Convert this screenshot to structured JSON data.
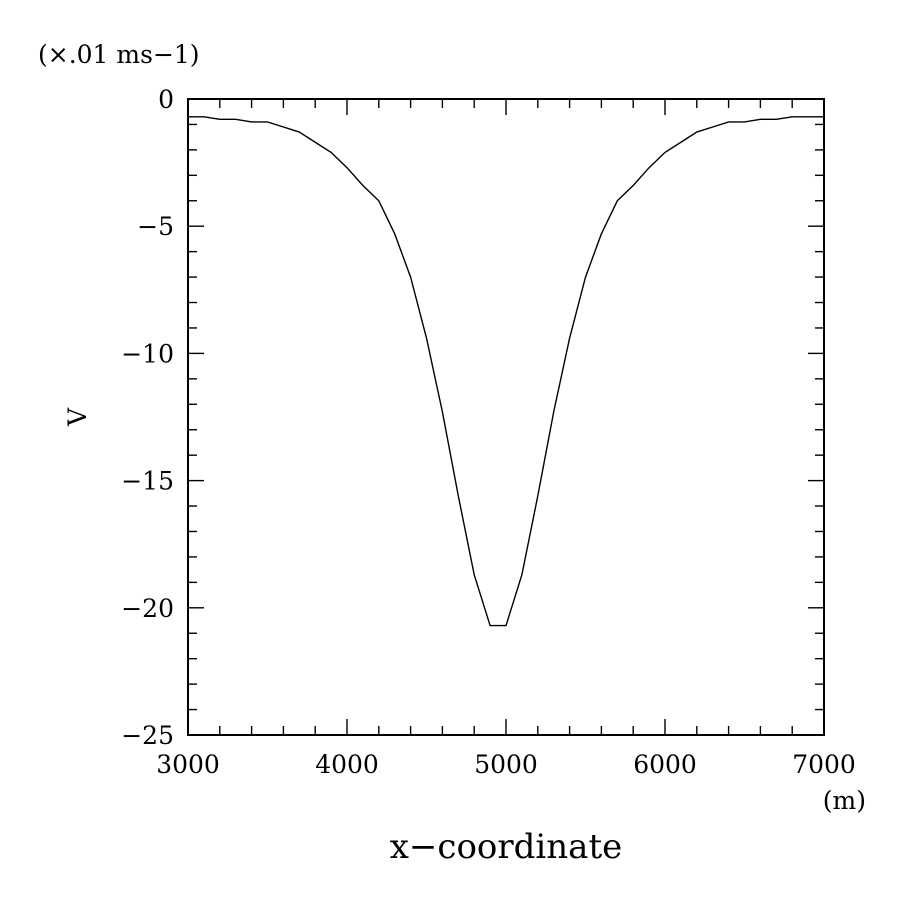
{
  "chart_data": {
    "type": "line",
    "title": "",
    "xlabel": "x−coordinate",
    "ylabel": "V",
    "x_unit": "(m)",
    "y_unit": "(×.01 ms−1)",
    "xlim": [
      3000,
      7000
    ],
    "ylim": [
      -25,
      0
    ],
    "x_ticks": [
      3000,
      4000,
      5000,
      6000,
      7000
    ],
    "x_tick_labels": [
      "3000",
      "4000",
      "5000",
      "6000",
      "7000"
    ],
    "y_ticks": [
      0,
      -5,
      -10,
      -15,
      -20,
      -25
    ],
    "y_tick_labels": [
      "0",
      "−5",
      "−10",
      "−15",
      "−20",
      "−25"
    ],
    "x_minor_step": 200,
    "y_minor_step": 1,
    "grid": false,
    "series": [
      {
        "x": [
          3000,
          3100,
          3200,
          3300,
          3400,
          3500,
          3600,
          3700,
          3800,
          3900,
          4000,
          4100,
          4200,
          4300,
          4400,
          4500,
          4600,
          4700,
          4800,
          4900,
          5000,
          5100,
          5200,
          5300,
          5400,
          5500,
          5600,
          5700,
          5800,
          5900,
          6000,
          6100,
          6200,
          6300,
          6400,
          6500,
          6600,
          6700,
          6800,
          6900,
          7000
        ],
        "values": [
          -0.7,
          -0.7,
          -0.8,
          -0.8,
          -0.9,
          -0.9,
          -1.1,
          -1.3,
          -1.7,
          -2.1,
          -2.7,
          -3.4,
          -4.0,
          -5.3,
          -7.0,
          -9.4,
          -12.3,
          -15.6,
          -18.7,
          -20.7,
          -20.7,
          -18.7,
          -15.6,
          -12.3,
          -9.4,
          -7.0,
          -5.3,
          -4.0,
          -3.4,
          -2.7,
          -2.1,
          -1.7,
          -1.3,
          -1.1,
          -0.9,
          -0.9,
          -0.8,
          -0.8,
          -0.7,
          -0.7,
          -0.7
        ]
      }
    ]
  }
}
